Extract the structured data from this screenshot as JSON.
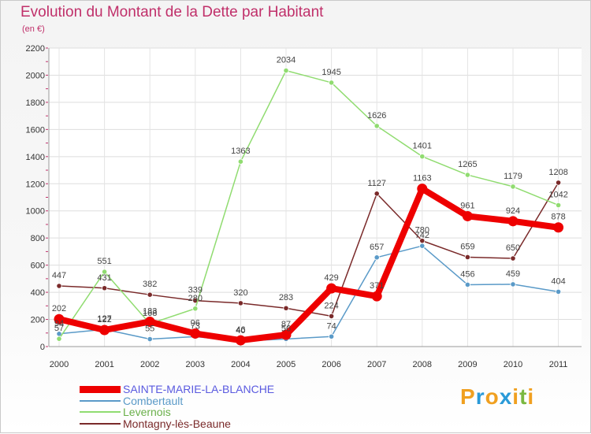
{
  "header": {
    "title": "Evolution du Montant de la Dette par Habitant",
    "subtitle": "(en €)"
  },
  "brand": {
    "logo_text": "Proxiti",
    "letters": [
      {
        "ch": "P",
        "color": "#f0a020"
      },
      {
        "ch": "r",
        "color": "#2a9ad8"
      },
      {
        "ch": "o",
        "color": "#f0a020"
      },
      {
        "ch": "x",
        "color": "#2a9ad8"
      },
      {
        "ch": "i",
        "color": "#f0a020"
      },
      {
        "ch": "t",
        "color": "#7ab840"
      },
      {
        "ch": "i",
        "color": "#f0a020"
      }
    ]
  },
  "chart_data": {
    "type": "line",
    "x": [
      "2000",
      "2001",
      "2002",
      "2003",
      "2004",
      "2005",
      "2006",
      "2007",
      "2008",
      "2009",
      "2010",
      "2011"
    ],
    "ylim": [
      0,
      2200
    ],
    "yticks": [
      "0",
      "200",
      "400",
      "600",
      "800",
      "1000",
      "1200",
      "1400",
      "1600",
      "1800",
      "2000",
      "2200"
    ],
    "ytick_values": [
      0,
      200,
      400,
      600,
      800,
      1000,
      1200,
      1400,
      1600,
      1800,
      2000,
      2200
    ],
    "grid": true,
    "legend_position": "bottom-left",
    "series": [
      {
        "name": "SAINTE-MARIE-LA-BLANCHE",
        "color": "#ee0000",
        "label_color": "#5a5ae0",
        "values": [
          202,
          122,
          183,
          96,
          46,
          87,
          429,
          371,
          1163,
          961,
          924,
          878
        ]
      },
      {
        "name": "Combertault",
        "color": "#5a9ac8",
        "label_color": "#5a9ac8",
        "values": [
          94,
          127,
          55,
          73,
          40,
          56,
          74,
          657,
          742,
          456,
          459,
          404
        ]
      },
      {
        "name": "Levernois",
        "color": "#90dc70",
        "label_color": "#6ab04a",
        "values": [
          57,
          551,
          168,
          280,
          1363,
          2034,
          1945,
          1626,
          1401,
          1265,
          1179,
          1042
        ]
      },
      {
        "name": "Montagny-lès-Beaune",
        "color": "#7a2a2a",
        "label_color": "#7a2a2a",
        "values": [
          447,
          431,
          382,
          339,
          320,
          283,
          224,
          1127,
          780,
          659,
          650,
          1208
        ]
      }
    ]
  }
}
